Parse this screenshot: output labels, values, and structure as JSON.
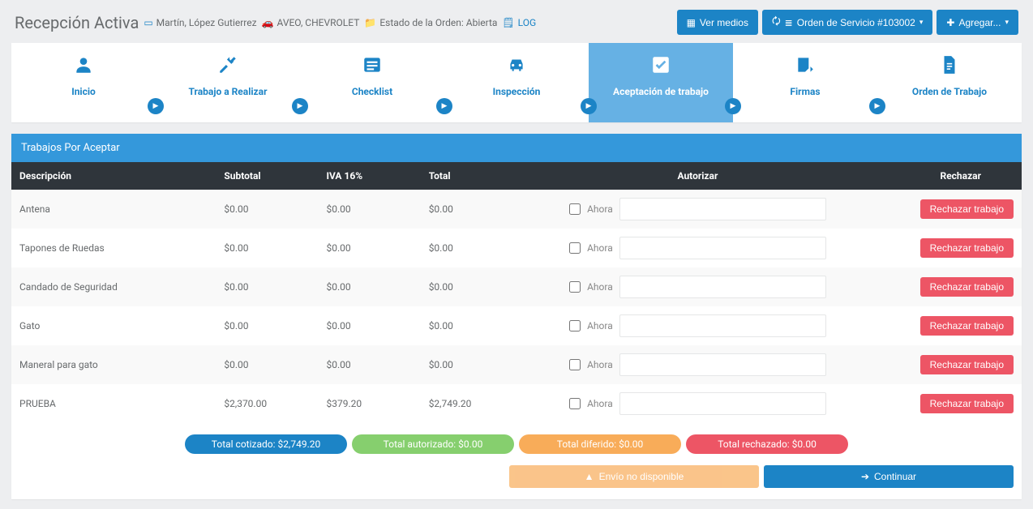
{
  "header": {
    "title": "Recepción Activa",
    "client_label": "Martín, López Gutierrez",
    "vehicle_label": "AVEO, CHEVROLET",
    "order_state_label": "Estado de la Orden: Abierta",
    "log_label": "LOG",
    "buttons": {
      "media": "Ver medios",
      "order": "Orden de Servicio #103002",
      "add": "Agregar..."
    }
  },
  "tabs": [
    {
      "id": "inicio",
      "label": "Inicio",
      "icon": "user"
    },
    {
      "id": "trabajo",
      "label": "Trabajo a Realizar",
      "icon": "tools"
    },
    {
      "id": "checklist",
      "label": "Checklist",
      "icon": "list"
    },
    {
      "id": "inspeccion",
      "label": "Inspección",
      "icon": "car"
    },
    {
      "id": "aceptacion",
      "label": "Aceptación de trabajo",
      "icon": "check",
      "active": true
    },
    {
      "id": "firmas",
      "label": "Firmas",
      "icon": "signature"
    },
    {
      "id": "orden",
      "label": "Orden de Trabajo",
      "icon": "file"
    }
  ],
  "panel": {
    "title": "Trabajos Por Aceptar",
    "columns": {
      "desc": "Descripción",
      "subtotal": "Subtotal",
      "iva": "IVA 16%",
      "total": "Total",
      "autorizar": "Autorizar",
      "rechazar": "Rechazar"
    },
    "authorize_now_label": "Ahora",
    "reject_btn_label": "Rechazar trabajo",
    "rows": [
      {
        "desc": "Antena",
        "subtotal": "$0.00",
        "iva": "$0.00",
        "total": "$0.00"
      },
      {
        "desc": "Tapones de Ruedas",
        "subtotal": "$0.00",
        "iva": "$0.00",
        "total": "$0.00"
      },
      {
        "desc": "Candado de Seguridad",
        "subtotal": "$0.00",
        "iva": "$0.00",
        "total": "$0.00"
      },
      {
        "desc": "Gato",
        "subtotal": "$0.00",
        "iva": "$0.00",
        "total": "$0.00"
      },
      {
        "desc": "Maneral para gato",
        "subtotal": "$0.00",
        "iva": "$0.00",
        "total": "$0.00"
      },
      {
        "desc": "PRUEBA",
        "subtotal": "$2,370.00",
        "iva": "$379.20",
        "total": "$2,749.20"
      }
    ],
    "totals": {
      "cotizado": "Total cotizado: $2,749.20",
      "autorizado": "Total autorizado: $0.00",
      "diferido": "Total diferido: $0.00",
      "rechazado": "Total rechazado: $0.00"
    },
    "footer": {
      "send_disabled": "Envío no disponible",
      "continue": "Continuar"
    }
  },
  "colors": {
    "primary": "#1c84c6",
    "active_tab": "#66b1e4",
    "panel_header": "#3498db",
    "table_header": "#2f353b",
    "danger": "#ed5565",
    "warning": "#f8ac59",
    "success": "#86cf6e"
  }
}
